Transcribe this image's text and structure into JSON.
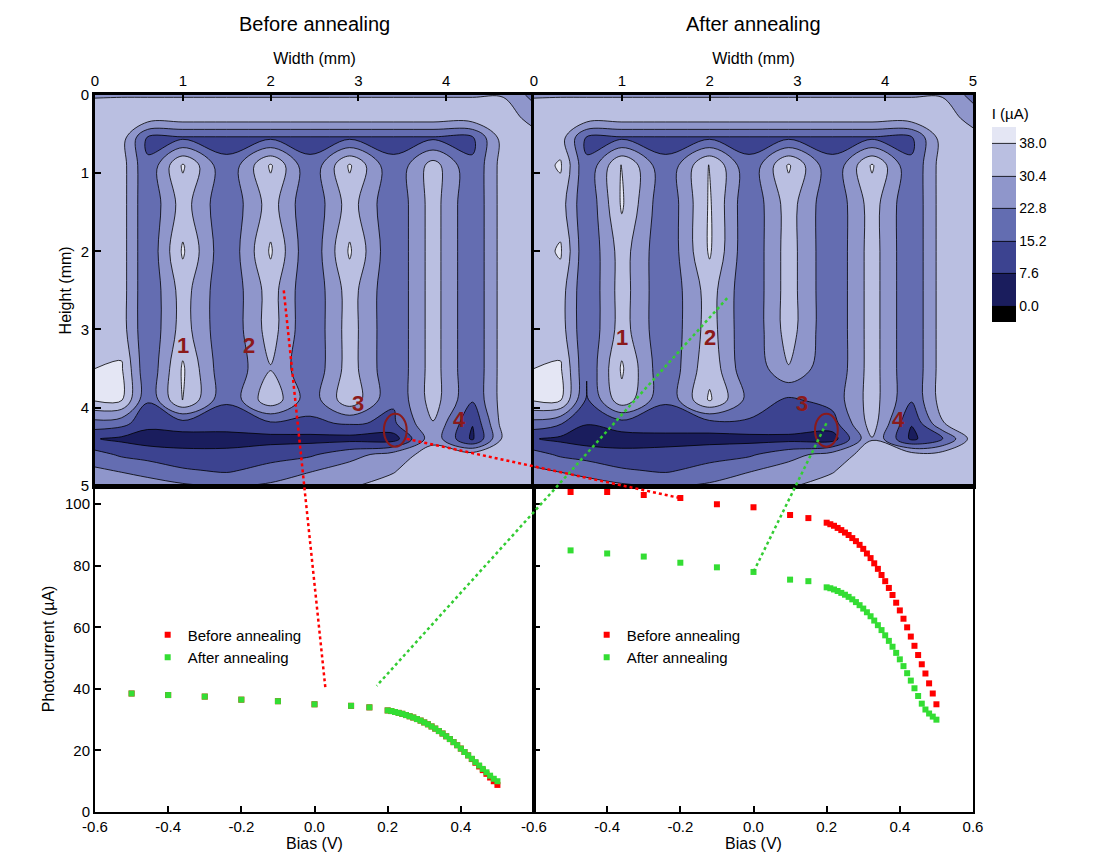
{
  "chart_data": [
    {
      "type": "contour",
      "title": "Before annealing",
      "x_label": "Width (mm)",
      "y_label": "Height (mm)",
      "x": [
        0,
        0.3,
        0.6,
        1.0,
        1.5,
        2.0,
        2.45,
        2.9,
        3.4,
        3.85,
        4.3,
        4.65,
        5
      ],
      "y": [
        0,
        0.3,
        0.55,
        0.9,
        1.4,
        2.0,
        2.5,
        3.0,
        3.5,
        3.9,
        4.2,
        4.4,
        4.6,
        4.8,
        5
      ],
      "z": [
        [
          30,
          30,
          30,
          30,
          30,
          30,
          30,
          30,
          30,
          30,
          30,
          30,
          20
        ],
        [
          33,
          34,
          34,
          34,
          34,
          34,
          34,
          34,
          34,
          34,
          34,
          34,
          28
        ],
        [
          33,
          34,
          14,
          14,
          14,
          14,
          14,
          14,
          14,
          14,
          14,
          34,
          33
        ],
        [
          34,
          34,
          16,
          39,
          16,
          39,
          16,
          39,
          16,
          34,
          16,
          34,
          34
        ],
        [
          34,
          34,
          16,
          34,
          16,
          34,
          16,
          34,
          16,
          34,
          16,
          34,
          34
        ],
        [
          34,
          34,
          16,
          39,
          16,
          39,
          16,
          39,
          16,
          34,
          16,
          34,
          34
        ],
        [
          34,
          34,
          16,
          34,
          16,
          34,
          16,
          34,
          16,
          34,
          16,
          34,
          34
        ],
        [
          34,
          34,
          16,
          34,
          16,
          34,
          16,
          34,
          16,
          34,
          16,
          34,
          34
        ],
        [
          38,
          39,
          16,
          39,
          16,
          30,
          16,
          34,
          16,
          34,
          16,
          34,
          34
        ],
        [
          39,
          39,
          16,
          39,
          16,
          36,
          18,
          36,
          16,
          34,
          16,
          34,
          34
        ],
        [
          20,
          18,
          10,
          12,
          12,
          14,
          14,
          16,
          14,
          30,
          8,
          34,
          34
        ],
        [
          8,
          6,
          4,
          4,
          4,
          5,
          5,
          5,
          4,
          28,
          6,
          32,
          34
        ],
        [
          18,
          14,
          12,
          10,
          10,
          12,
          14,
          20,
          26,
          34,
          34,
          34,
          34
        ],
        [
          24,
          22,
          20,
          16,
          14,
          18,
          22,
          26,
          30,
          34,
          34,
          34,
          34
        ],
        [
          30,
          28,
          26,
          24,
          22,
          24,
          28,
          30,
          32,
          34,
          34,
          34,
          34
        ]
      ],
      "xlim": [
        0,
        5
      ],
      "ylim": [
        5,
        0
      ],
      "xticks": [
        0,
        1,
        2,
        3,
        4
      ],
      "yticks": [
        0,
        1,
        2,
        3,
        4,
        5
      ],
      "colorbar": {
        "title": "I (µA)",
        "range": [
          0,
          38
        ],
        "ticks": [
          {
            "value": 0,
            "label": "0.0"
          },
          7.6,
          15.2,
          22.8,
          30.4,
          {
            "value": 38,
            "label": "38.0"
          }
        ]
      },
      "annotations": [
        {
          "text": "1",
          "x": 1.0,
          "y": 3.2
        },
        {
          "text": "2",
          "x": 1.75,
          "y": 3.2
        },
        {
          "text": "3",
          "x": 3.0,
          "y": 3.95
        },
        {
          "text": "4",
          "x": 4.15,
          "y": 4.15
        }
      ]
    },
    {
      "type": "contour",
      "title": "After annealing",
      "x_label": "Width (mm)",
      "x": [
        0,
        0.3,
        0.6,
        1.0,
        1.5,
        2.0,
        2.45,
        2.9,
        3.4,
        3.85,
        4.3,
        4.65,
        5
      ],
      "y": [
        0,
        0.3,
        0.55,
        0.9,
        1.4,
        2.0,
        2.5,
        3.0,
        3.5,
        3.9,
        4.2,
        4.4,
        4.6,
        4.8,
        5
      ],
      "z": [
        [
          30,
          30,
          30,
          30,
          30,
          30,
          30,
          30,
          30,
          30,
          30,
          30,
          20
        ],
        [
          33,
          34,
          34,
          34,
          34,
          34,
          34,
          34,
          34,
          34,
          34,
          34,
          28
        ],
        [
          33,
          34,
          14,
          14,
          14,
          14,
          14,
          14,
          14,
          14,
          14,
          34,
          33
        ],
        [
          34,
          39,
          16,
          39,
          16,
          39,
          16,
          39,
          16,
          39,
          16,
          34,
          34
        ],
        [
          34,
          34,
          16,
          39,
          16,
          39,
          16,
          34,
          16,
          34,
          16,
          34,
          34
        ],
        [
          34,
          39,
          16,
          34,
          16,
          39,
          16,
          34,
          16,
          34,
          16,
          34,
          34
        ],
        [
          34,
          34,
          16,
          34,
          16,
          34,
          16,
          34,
          16,
          34,
          16,
          34,
          34
        ],
        [
          34,
          34,
          16,
          34,
          16,
          34,
          16,
          34,
          16,
          34,
          16,
          34,
          34
        ],
        [
          38,
          39,
          16,
          39,
          16,
          36,
          16,
          30,
          16,
          34,
          16,
          34,
          34
        ],
        [
          39,
          39,
          14,
          36,
          16,
          39,
          20,
          14,
          18,
          34,
          16,
          34,
          34
        ],
        [
          20,
          16,
          8,
          12,
          12,
          12,
          14,
          14,
          12,
          34,
          8,
          30,
          34
        ],
        [
          8,
          6,
          4,
          4,
          5,
          5,
          5,
          5,
          4,
          30,
          6,
          14,
          34
        ],
        [
          18,
          14,
          12,
          10,
          10,
          12,
          14,
          20,
          26,
          34,
          34,
          34,
          34
        ],
        [
          24,
          22,
          20,
          16,
          14,
          18,
          22,
          26,
          30,
          34,
          34,
          34,
          34
        ],
        [
          30,
          28,
          26,
          24,
          22,
          24,
          28,
          30,
          32,
          34,
          34,
          34,
          34
        ]
      ],
      "xlim": [
        0,
        5
      ],
      "ylim": [
        5,
        0
      ],
      "xticks": [
        0,
        1,
        2,
        3,
        4,
        5
      ],
      "yticks": [
        0,
        1,
        2,
        3,
        4,
        5
      ],
      "tick_labels": "x",
      "annotations": [
        {
          "text": "1",
          "x": 1.0,
          "y": 3.1
        },
        {
          "text": "2",
          "x": 2.0,
          "y": 3.1
        },
        {
          "text": "3",
          "x": 3.05,
          "y": 3.95
        },
        {
          "text": "4",
          "x": 4.15,
          "y": 4.15
        }
      ]
    },
    {
      "type": "scatter",
      "x_label": "Bias (V)",
      "y_label": "Photocurrent (µA)",
      "legend": "left",
      "marker": "square",
      "x": [
        -0.5,
        -0.4,
        -0.3,
        -0.2,
        -0.1,
        0,
        0.1,
        0.15,
        0.2,
        0.21,
        0.22,
        0.23,
        0.24,
        0.25,
        0.26,
        0.27,
        0.28,
        0.29,
        0.3,
        0.31,
        0.32,
        0.33,
        0.34,
        0.35,
        0.36,
        0.37,
        0.38,
        0.39,
        0.4,
        0.41,
        0.42,
        0.43,
        0.44,
        0.45,
        0.46,
        0.47,
        0.48,
        0.49,
        0.5
      ],
      "series": [
        {
          "name": "Before annealing",
          "color": "#ff0000",
          "values": [
            38.5,
            38,
            37.5,
            36.5,
            36,
            35,
            34.5,
            34,
            33,
            32.8,
            32.5,
            32.2,
            31.9,
            31.5,
            31.1,
            30.7,
            30.2,
            29.7,
            29.1,
            28.5,
            27.8,
            27.1,
            26.3,
            25.5,
            24.6,
            23.7,
            22.7,
            21.7,
            20.6,
            19.5,
            18.4,
            17.2,
            16.0,
            14.8,
            13.6,
            12.4,
            11.2,
            10.0,
            8.8
          ]
        },
        {
          "name": "After annealing",
          "color": "#33dd33",
          "values": [
            38.5,
            38,
            37.5,
            36.5,
            36,
            35,
            34.5,
            34,
            33,
            32.8,
            32.5,
            32.2,
            31.9,
            31.5,
            31.1,
            30.7,
            30.2,
            29.7,
            29.1,
            28.5,
            27.8,
            27.1,
            26.3,
            25.5,
            24.6,
            23.7,
            22.7,
            21.7,
            20.6,
            19.5,
            18.4,
            17.3,
            16.2,
            15.1,
            14.0,
            12.9,
            11.8,
            10.8,
            10.0
          ]
        }
      ],
      "xlim": [
        -0.6,
        0.6
      ],
      "ylim": [
        0,
        106
      ],
      "xticks": [
        -0.6,
        -0.4,
        -0.2,
        {
          "value": 0,
          "label": "0.0"
        },
        0.2,
        0.4
      ],
      "yticks": [
        0,
        20,
        40,
        60,
        80,
        100
      ]
    },
    {
      "type": "scatter",
      "x_label": "Bias (V)",
      "legend": "left",
      "marker": "square",
      "tick_labels": "x",
      "x": [
        -0.5,
        -0.4,
        -0.3,
        -0.2,
        -0.1,
        0,
        0.1,
        0.15,
        0.2,
        0.21,
        0.22,
        0.23,
        0.24,
        0.25,
        0.26,
        0.27,
        0.28,
        0.29,
        0.3,
        0.31,
        0.32,
        0.33,
        0.34,
        0.35,
        0.36,
        0.37,
        0.38,
        0.39,
        0.4,
        0.41,
        0.42,
        0.43,
        0.44,
        0.45,
        0.46,
        0.47,
        0.48,
        0.49,
        0.5
      ],
      "series": [
        {
          "name": "Before annealing",
          "color": "#ff0000",
          "values": [
            104,
            104,
            103,
            102,
            100,
            99,
            96.5,
            95.5,
            94,
            93.5,
            93,
            92.3,
            91.6,
            90.8,
            90,
            89,
            88,
            86.8,
            85.5,
            84,
            82.5,
            80.8,
            79,
            77,
            75,
            72.8,
            70.5,
            68,
            65.5,
            62.8,
            60,
            57,
            54,
            51,
            48,
            45,
            41.8,
            38.5,
            35
          ]
        },
        {
          "name": "After annealing",
          "color": "#33dd33",
          "values": [
            85,
            84,
            83,
            81,
            79.5,
            78,
            75.5,
            75,
            73,
            72.7,
            72.3,
            71.8,
            71.2,
            70.6,
            69.9,
            69.1,
            68.2,
            67.2,
            66.1,
            64.9,
            63.6,
            62.2,
            60.7,
            59.1,
            57.4,
            55.6,
            53.7,
            51.7,
            49.6,
            47.4,
            45.1,
            42.7,
            40.2,
            37.7,
            35.2,
            33.3,
            32,
            31,
            30
          ]
        }
      ],
      "xlim": [
        -0.6,
        0.6
      ],
      "ylim": [
        0,
        106
      ],
      "xticks": [
        -0.6,
        -0.4,
        -0.2,
        {
          "value": 0,
          "label": "0.0"
        },
        0.2,
        0.4,
        0.6
      ],
      "yticks": [
        0,
        20,
        40,
        60,
        80,
        100
      ]
    }
  ]
}
